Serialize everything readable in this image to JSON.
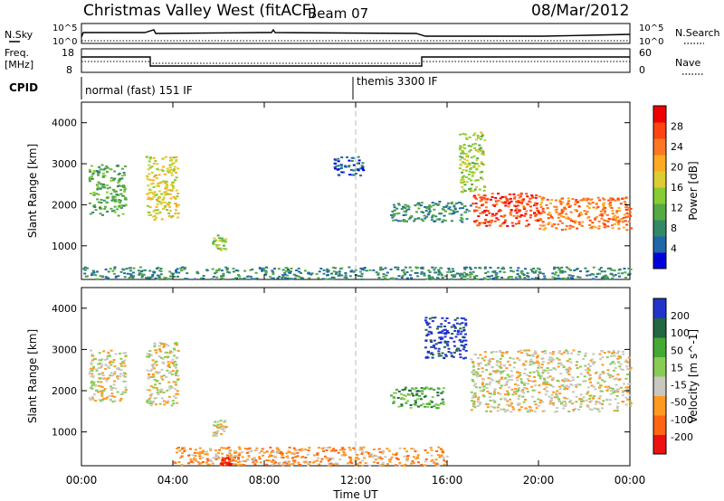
{
  "header": {
    "station": "Christmas Valley West (fitACF)",
    "beam": "Beam 07",
    "date": "08/Mar/2012"
  },
  "ancillary": {
    "nsky_label": "N.Sky",
    "nsky_ticks": [
      "10^5",
      "10^0"
    ],
    "nsearch_label": "N.Search",
    "nsearch_ticks": [
      "10^5",
      "10^0"
    ],
    "freq_label_line1": "Freq.",
    "freq_label_line2": "[MHz]",
    "freq_ticks": [
      "18",
      "8"
    ],
    "nave_label": "Nave",
    "nave_ticks": [
      "60",
      "0"
    ],
    "cpid_label": "CPID",
    "cpid_segments": [
      "normal (fast) 151 IF",
      "themis 3300 IF"
    ]
  },
  "chart_data": [
    {
      "type": "heatmap",
      "panel": "power",
      "xlabel": "Time UT",
      "ylabel": "Slant Range [km]",
      "x_ticks": [
        "00:00",
        "04:00",
        "08:00",
        "12:00",
        "16:00",
        "20:00",
        "00:00"
      ],
      "xlim_hours": [
        0,
        24
      ],
      "y_ticks": [
        1000,
        2000,
        3000,
        4000
      ],
      "ylim_km": [
        180,
        4500
      ],
      "colorbar_label": "Power [dB]",
      "colorbar_ticks": [
        "4",
        "8",
        "12",
        "16",
        "20",
        "24",
        "28"
      ],
      "colorbar_colors": [
        "#0000dd",
        "#2266aa",
        "#338866",
        "#55aa44",
        "#88cc33",
        "#ddcc33",
        "#ffaa22",
        "#ff7722",
        "#ff4411",
        "#ee0000"
      ],
      "marker_time_hours": 12.0,
      "regions": [
        {
          "t": [
            0.3,
            1.9
          ],
          "r": [
            1750,
            3000
          ],
          "color_index": 3
        },
        {
          "t": [
            2.8,
            4.2
          ],
          "r": [
            1650,
            3200
          ],
          "color_index": 5
        },
        {
          "t": [
            5.7,
            6.3
          ],
          "r": [
            900,
            1300
          ],
          "color_index": 4
        },
        {
          "t": [
            0.0,
            24.0
          ],
          "r": [
            200,
            500
          ],
          "color_index": 2
        },
        {
          "t": [
            13.5,
            17.0
          ],
          "r": [
            1600,
            2100
          ],
          "color_index": 2
        },
        {
          "t": [
            17.0,
            20.0
          ],
          "r": [
            1500,
            2300
          ],
          "color_index": 8
        },
        {
          "t": [
            20.0,
            24.0
          ],
          "r": [
            1400,
            2200
          ],
          "color_index": 7
        },
        {
          "t": [
            16.5,
            17.6
          ],
          "r": [
            2300,
            3800
          ],
          "color_index": 4
        },
        {
          "t": [
            11.0,
            12.3
          ],
          "r": [
            2700,
            3200
          ],
          "color_index": 1
        }
      ]
    },
    {
      "type": "heatmap",
      "panel": "velocity",
      "xlabel": "Time UT",
      "ylabel": "Slant Range [km]",
      "x_ticks": [
        "00:00",
        "04:00",
        "08:00",
        "12:00",
        "16:00",
        "20:00",
        "00:00"
      ],
      "xlim_hours": [
        0,
        24
      ],
      "y_ticks": [
        1000,
        2000,
        3000,
        4000
      ],
      "ylim_km": [
        180,
        4500
      ],
      "colorbar_label": "Velocity [m s^-1]",
      "colorbar_ticks": [
        "200",
        "100",
        "50",
        "15",
        "-15",
        "-50",
        "-100",
        "-200"
      ],
      "colorbar_colors": [
        "#2233cc",
        "#226644",
        "#44aa33",
        "#88cc55",
        "#c8c8c0",
        "#ff9922",
        "#ff6611",
        "#ee1111"
      ],
      "marker_time_hours": 12.0,
      "regions": [
        {
          "t": [
            0.3,
            1.9
          ],
          "r": [
            1750,
            3000
          ],
          "color_index": 4
        },
        {
          "t": [
            2.8,
            4.2
          ],
          "r": [
            1650,
            3200
          ],
          "color_index": 4
        },
        {
          "t": [
            5.7,
            6.3
          ],
          "r": [
            900,
            1300
          ],
          "color_index": 4
        },
        {
          "t": [
            4.0,
            16.0
          ],
          "r": [
            200,
            650
          ],
          "color_index": 5
        },
        {
          "t": [
            13.5,
            15.8
          ],
          "r": [
            1600,
            2100
          ],
          "color_index": 2
        },
        {
          "t": [
            15.0,
            16.8
          ],
          "r": [
            2800,
            3800
          ],
          "color_index": 0
        },
        {
          "t": [
            17.0,
            24.0
          ],
          "r": [
            1500,
            3000
          ],
          "color_index": 4
        },
        {
          "t": [
            6.0,
            6.5
          ],
          "r": [
            200,
            400
          ],
          "color_index": 7
        }
      ]
    }
  ]
}
